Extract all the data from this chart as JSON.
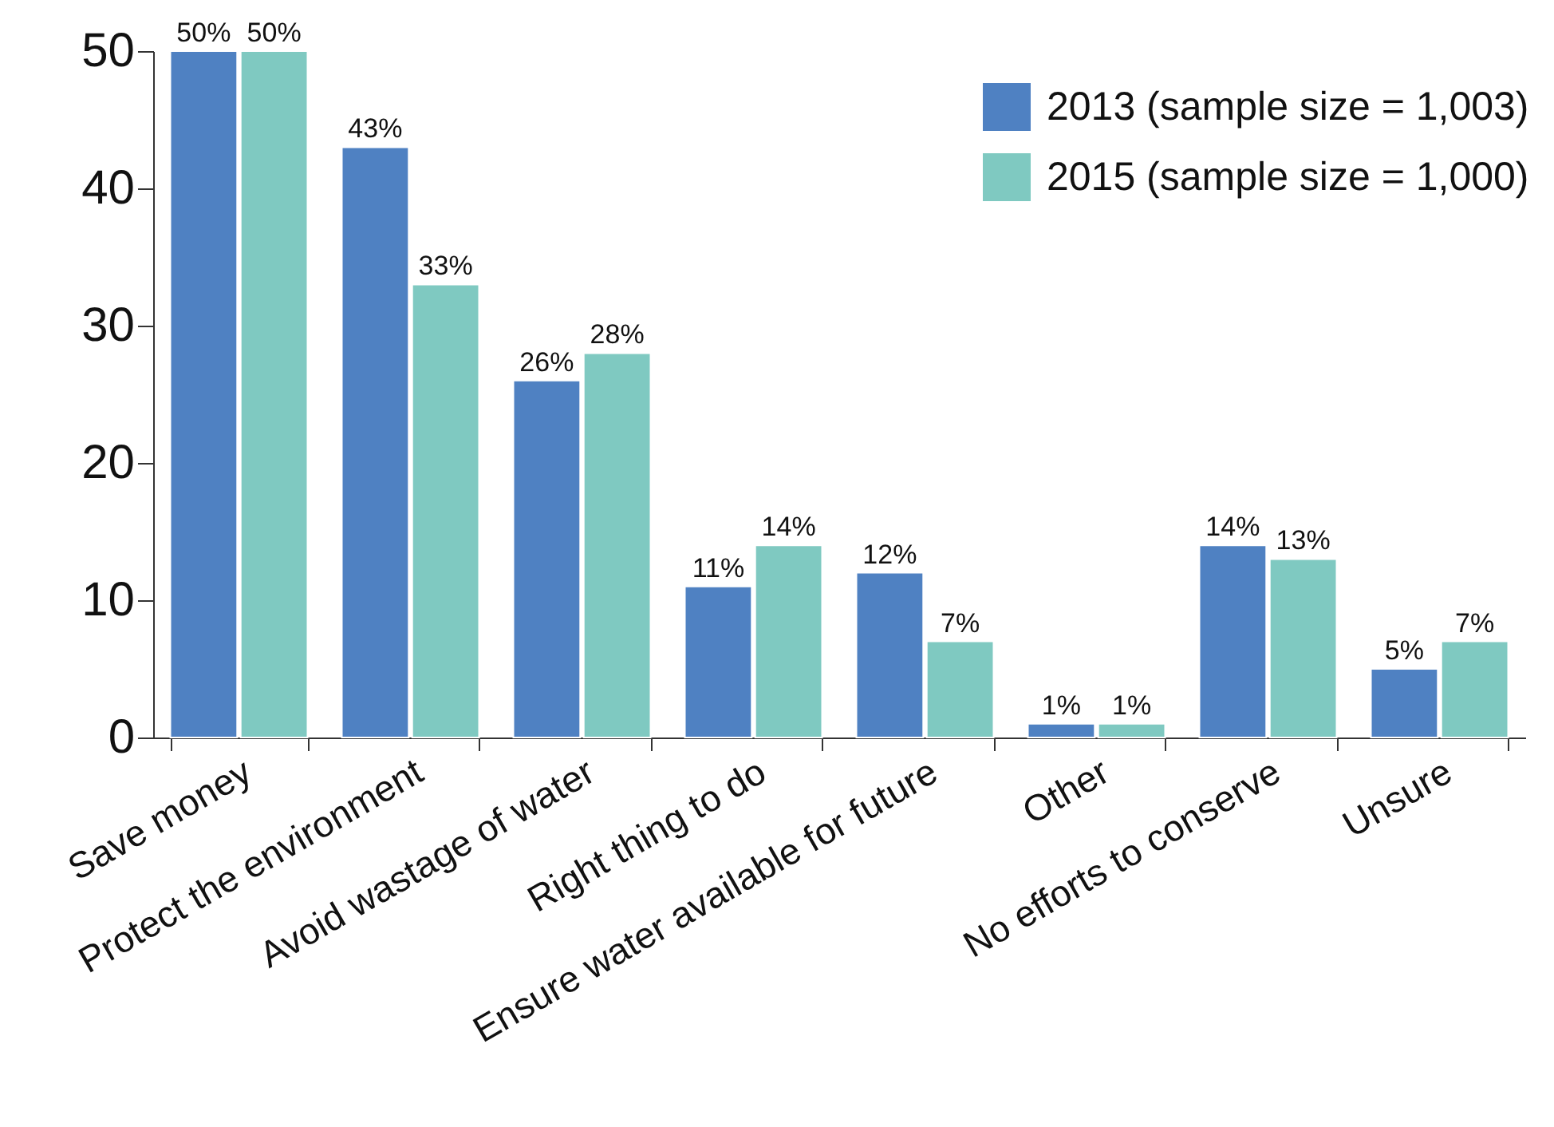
{
  "chart_data": {
    "type": "bar",
    "categories": [
      "Save money",
      "Protect the environment",
      "Avoid wastage of water",
      "Right thing to do",
      "Ensure water available for future",
      "Other",
      "No efforts to conserve",
      "Unsure"
    ],
    "series": [
      {
        "name": "2013 (sample size = 1,003)",
        "color": "#4f81c2",
        "values": [
          50,
          43,
          26,
          11,
          12,
          1,
          14,
          5
        ],
        "value_labels": [
          "50%",
          "43%",
          "26%",
          "11%",
          "12%",
          "1%",
          "14%",
          "5%"
        ]
      },
      {
        "name": "2015 (sample size = 1,000)",
        "color": "#7fc9c1",
        "values": [
          50,
          33,
          28,
          14,
          7,
          1,
          13,
          7
        ],
        "value_labels": [
          "50%",
          "33%",
          "28%",
          "14%",
          "7%",
          "1%",
          "13%",
          "7%"
        ]
      }
    ],
    "ylim": [
      0,
      50
    ],
    "yticks": [
      0,
      10,
      20,
      30,
      40,
      50
    ],
    "grid": false,
    "legend": "top right"
  }
}
